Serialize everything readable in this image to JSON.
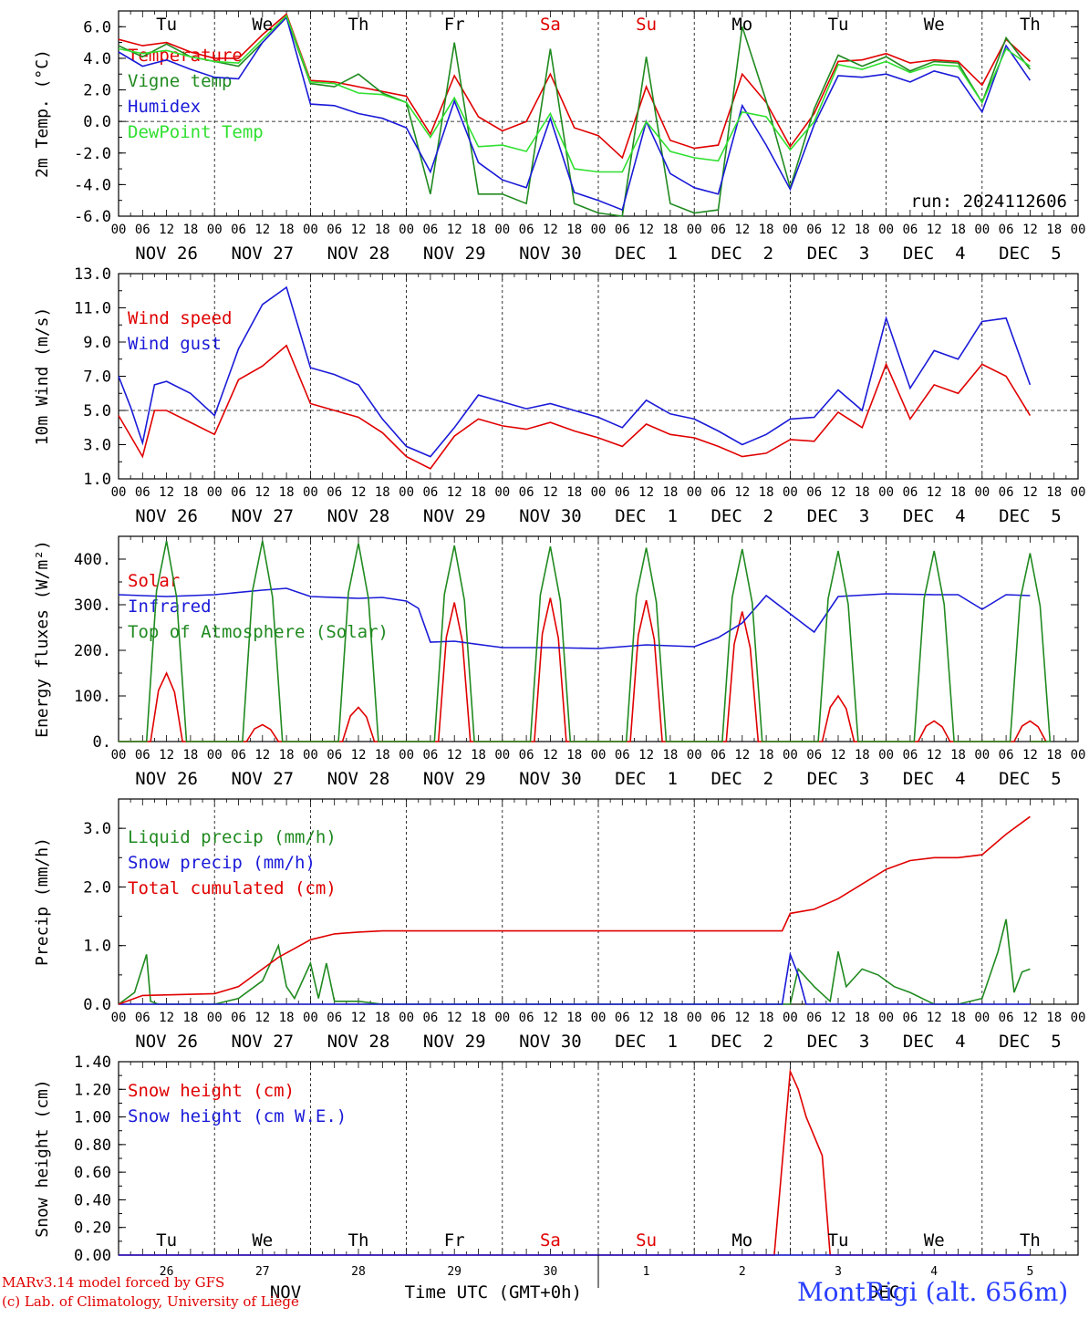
{
  "colors": {
    "red": "#e00000",
    "green": "#208a20",
    "blue": "#1a1ad8",
    "lightgreen": "#30e030",
    "axis": "#000000"
  },
  "day_labels": [
    "Tu",
    "We",
    "Th",
    "Fr",
    "Sa",
    "Su",
    "Mo",
    "Tu",
    "We",
    "Th"
  ],
  "weekend_days": [
    "Sa",
    "Su"
  ],
  "date_labels": [
    "NOV 26",
    "NOV 27",
    "NOV 28",
    "NOV 29",
    "NOV 30",
    "DEC  1",
    "DEC  2",
    "DEC  3",
    "DEC  4",
    "DEC  5"
  ],
  "hour_ticks": [
    "00",
    "06",
    "12",
    "18"
  ],
  "bottom_axis": {
    "day_numbers": [
      "26",
      "27",
      "28",
      "29",
      "30",
      "1",
      "2",
      "3",
      "4",
      "5"
    ],
    "month_nov": "NOV",
    "month_dec": "DEC",
    "title": "Time UTC (GMT+0h)"
  },
  "footer": {
    "model": "MARv3.14 model forced by GFS",
    "lab": "(c) Lab. of Climatology, University of Liège",
    "station": "MontRigi (alt. 656m)"
  },
  "chart_data": [
    {
      "id": "temp",
      "type": "line",
      "ylabel": "2m Temp. (°C)",
      "ylim": [
        -6,
        7
      ],
      "yticks": [
        "6.0",
        "4.0",
        "2.0",
        "0.0",
        "-2.0",
        "-4.0",
        "-6.0"
      ],
      "ytick_values": [
        6,
        4,
        2,
        0,
        -2,
        -4,
        -6
      ],
      "ref_line": 0,
      "annotation": "run: 2024112606",
      "x_unit": "hours since NOV 26 00 UTC",
      "series": [
        {
          "name": "Temperature",
          "color": "red",
          "x": [
            0,
            6,
            12,
            18,
            24,
            30,
            36,
            42,
            48,
            54,
            60,
            66,
            72,
            78,
            84,
            90,
            96,
            102,
            108,
            114,
            120,
            126,
            132,
            138,
            144,
            150,
            156,
            162,
            168,
            174,
            180,
            186,
            192,
            198,
            204,
            210,
            216,
            222,
            228
          ],
          "y": [
            5.2,
            4.8,
            5.0,
            4.4,
            4.0,
            4.0,
            5.5,
            6.8,
            2.6,
            2.5,
            2.2,
            1.9,
            1.6,
            -0.8,
            2.9,
            0.3,
            -0.6,
            0.0,
            3.0,
            -0.4,
            -0.9,
            -2.3,
            2.2,
            -1.2,
            -1.7,
            -1.5,
            3.0,
            1.2,
            -1.6,
            0.5,
            3.8,
            3.9,
            4.3,
            3.7,
            3.9,
            3.8,
            2.3,
            5.2,
            3.8
          ]
        },
        {
          "name": "Vigne temp",
          "color": "green",
          "x": [
            0,
            6,
            12,
            18,
            24,
            30,
            36,
            42,
            48,
            54,
            60,
            66,
            72,
            78,
            84,
            90,
            96,
            102,
            108,
            114,
            120,
            126,
            132,
            138,
            144,
            150,
            156,
            162,
            168,
            174,
            180,
            186,
            192,
            198,
            204,
            210,
            216,
            222,
            228
          ],
          "y": [
            4.8,
            4.1,
            4.9,
            4.1,
            3.8,
            3.5,
            5.0,
            6.6,
            2.4,
            2.2,
            3.0,
            1.8,
            1.2,
            -4.6,
            5.0,
            -4.6,
            -4.6,
            -5.2,
            4.6,
            -5.2,
            -5.8,
            -6.0,
            4.1,
            -5.2,
            -5.8,
            -5.6,
            6.0,
            1.3,
            -4.2,
            0.8,
            4.2,
            3.5,
            4.1,
            3.2,
            3.8,
            3.7,
            1.2,
            5.3,
            3.3
          ]
        },
        {
          "name": "Humidex",
          "color": "blue",
          "x": [
            0,
            6,
            12,
            18,
            24,
            30,
            36,
            42,
            48,
            54,
            60,
            66,
            72,
            78,
            84,
            90,
            96,
            102,
            108,
            114,
            120,
            126,
            132,
            138,
            144,
            150,
            156,
            162,
            168,
            174,
            180,
            186,
            192,
            198,
            204,
            210,
            216,
            222,
            228
          ],
          "y": [
            4.4,
            3.5,
            3.9,
            3.3,
            2.8,
            2.7,
            5.0,
            6.6,
            1.1,
            1.0,
            0.5,
            0.2,
            -0.4,
            -3.2,
            1.3,
            -2.6,
            -3.7,
            -4.2,
            0.2,
            -4.5,
            -5.0,
            -5.6,
            0.0,
            -3.3,
            -4.2,
            -4.6,
            1.0,
            -1.5,
            -4.3,
            -0.2,
            2.9,
            2.8,
            3.0,
            2.5,
            3.2,
            2.8,
            0.6,
            4.8,
            2.6
          ]
        },
        {
          "name": "DewPoint Temp",
          "color": "lightgreen",
          "x": [
            0,
            6,
            12,
            18,
            24,
            30,
            36,
            42,
            48,
            54,
            60,
            66,
            72,
            78,
            84,
            90,
            96,
            102,
            108,
            114,
            120,
            126,
            132,
            138,
            144,
            150,
            156,
            162,
            168,
            174,
            180,
            186,
            192,
            198,
            204,
            210,
            216,
            222,
            228
          ],
          "y": [
            4.6,
            4.3,
            4.5,
            4.1,
            3.8,
            3.7,
            5.2,
            6.7,
            2.5,
            2.4,
            1.8,
            1.7,
            1.2,
            -1.0,
            1.5,
            -1.6,
            -1.5,
            -1.9,
            0.5,
            -3.0,
            -3.2,
            -3.2,
            0.0,
            -1.9,
            -2.3,
            -2.5,
            0.6,
            0.3,
            -1.8,
            0.0,
            3.6,
            3.3,
            3.8,
            3.1,
            3.6,
            3.5,
            1.2,
            4.6,
            3.5
          ]
        }
      ]
    },
    {
      "id": "wind",
      "type": "line",
      "ylabel": "10m Wind (m/s)",
      "ylim": [
        1,
        13
      ],
      "yticks": [
        "13.0",
        "11.0",
        "9.0",
        "7.0",
        "5.0",
        "3.0",
        "1.0"
      ],
      "ytick_values": [
        13,
        11,
        9,
        7,
        5,
        3,
        1
      ],
      "ref_line": 5,
      "x_unit": "hours since NOV 26 00 UTC",
      "series": [
        {
          "name": "Wind speed",
          "color": "red",
          "x": [
            0,
            3,
            6,
            9,
            12,
            18,
            24,
            30,
            36,
            42,
            48,
            54,
            60,
            66,
            72,
            78,
            84,
            90,
            96,
            102,
            108,
            114,
            120,
            126,
            132,
            138,
            144,
            150,
            156,
            162,
            168,
            174,
            180,
            186,
            192,
            198,
            204,
            210,
            216,
            222,
            228
          ],
          "y": [
            4.7,
            3.5,
            2.3,
            5.0,
            5.0,
            4.3,
            3.6,
            6.8,
            7.6,
            8.8,
            5.4,
            5.0,
            4.6,
            3.7,
            2.3,
            1.6,
            3.5,
            4.5,
            4.1,
            3.9,
            4.3,
            3.8,
            3.4,
            2.9,
            4.2,
            3.6,
            3.4,
            2.9,
            2.3,
            2.5,
            3.3,
            3.2,
            4.9,
            4.0,
            7.7,
            4.5,
            6.5,
            6.0,
            7.7,
            7.0,
            4.7
          ]
        },
        {
          "name": "Wind gust",
          "color": "blue",
          "x": [
            0,
            3,
            6,
            9,
            12,
            18,
            24,
            30,
            36,
            42,
            48,
            54,
            60,
            66,
            72,
            78,
            84,
            90,
            96,
            102,
            108,
            114,
            120,
            126,
            132,
            138,
            144,
            150,
            156,
            162,
            168,
            174,
            180,
            186,
            192,
            198,
            204,
            210,
            216,
            222,
            228
          ],
          "y": [
            7.0,
            5.2,
            3.1,
            6.5,
            6.7,
            6.0,
            4.7,
            8.6,
            11.2,
            12.2,
            7.5,
            7.1,
            6.5,
            4.5,
            2.9,
            2.3,
            4.0,
            5.9,
            5.5,
            5.1,
            5.4,
            5.0,
            4.6,
            4.0,
            5.6,
            4.8,
            4.5,
            3.8,
            3.0,
            3.6,
            4.5,
            4.6,
            6.2,
            5.0,
            10.4,
            6.3,
            8.5,
            8.0,
            10.2,
            10.4,
            6.5
          ]
        }
      ]
    },
    {
      "id": "energy",
      "type": "line",
      "ylabel": "Energy fluxes (W/m²)",
      "ylim": [
        0,
        450
      ],
      "yticks": [
        "400.",
        "300.",
        "200.",
        "100.",
        "0."
      ],
      "ytick_values": [
        400,
        300,
        200,
        100,
        0
      ],
      "x_unit": "hours since NOV 26 00 UTC",
      "series": [
        {
          "name": "Solar",
          "color": "red",
          "peaks": [
            150,
            37,
            75,
            305,
            315,
            310,
            285,
            100,
            45,
            45
          ]
        },
        {
          "name": "Infrared",
          "color": "blue",
          "x": [
            0,
            12,
            24,
            36,
            42,
            48,
            60,
            66,
            72,
            75,
            78,
            84,
            96,
            108,
            120,
            132,
            144,
            150,
            156,
            162,
            168,
            174,
            180,
            192,
            204,
            210,
            216,
            222,
            228
          ],
          "y": [
            322,
            318,
            322,
            332,
            336,
            318,
            314,
            316,
            308,
            292,
            218,
            220,
            206,
            206,
            204,
            212,
            208,
            228,
            260,
            320,
            280,
            240,
            318,
            324,
            322,
            322,
            290,
            322,
            320
          ]
        },
        {
          "name": "Top of Atmosphere (Solar)",
          "color": "green",
          "peaks": [
            440,
            440,
            435,
            430,
            428,
            425,
            422,
            418,
            418,
            413
          ]
        }
      ]
    },
    {
      "id": "precip",
      "type": "line",
      "ylabel": "Precip (mm/h)",
      "ylim": [
        0,
        3.5
      ],
      "yticks": [
        "3.0",
        "2.0",
        "1.0",
        "0.0"
      ],
      "ytick_values": [
        3,
        2,
        1,
        0
      ],
      "x_unit": "hours since NOV 26 00 UTC",
      "series": [
        {
          "name": "Liquid precip (mm/h)",
          "color": "green",
          "x": [
            0,
            4,
            7,
            8,
            10,
            12,
            24,
            30,
            36,
            40,
            42,
            44,
            48,
            50,
            52,
            54,
            60,
            66,
            72,
            168,
            170,
            174,
            178,
            180,
            182,
            186,
            190,
            194,
            198,
            204,
            210,
            216,
            220,
            222,
            224,
            226,
            228
          ],
          "y": [
            0,
            0.2,
            0.85,
            0.05,
            0,
            0,
            0,
            0.1,
            0.4,
            1.0,
            0.3,
            0.1,
            0.7,
            0.1,
            0.7,
            0.05,
            0.05,
            0,
            0,
            0,
            0.6,
            0.3,
            0.05,
            0.9,
            0.3,
            0.6,
            0.5,
            0.3,
            0.2,
            0,
            0,
            0.1,
            0.9,
            1.45,
            0.2,
            0.55,
            0.6
          ]
        },
        {
          "name": "Snow precip (mm/h)",
          "color": "blue",
          "x": [
            0,
            166,
            168,
            170,
            172,
            174,
            228
          ],
          "y": [
            0,
            0,
            0.85,
            0.5,
            0,
            0,
            0
          ]
        },
        {
          "name": "Total cumulated (cm)",
          "color": "red",
          "x": [
            0,
            6,
            24,
            30,
            36,
            40,
            44,
            48,
            54,
            60,
            66,
            72,
            84,
            96,
            108,
            120,
            132,
            144,
            156,
            162,
            166,
            168,
            174,
            180,
            186,
            192,
            198,
            204,
            210,
            216,
            222,
            228
          ],
          "y": [
            0,
            0.15,
            0.18,
            0.3,
            0.6,
            0.8,
            0.95,
            1.1,
            1.2,
            1.23,
            1.25,
            1.25,
            1.25,
            1.25,
            1.25,
            1.25,
            1.25,
            1.25,
            1.25,
            1.25,
            1.25,
            1.55,
            1.62,
            1.8,
            2.05,
            2.3,
            2.45,
            2.5,
            2.5,
            2.55,
            2.9,
            3.2
          ]
        }
      ]
    },
    {
      "id": "snow",
      "type": "line",
      "ylabel": "Snow height (cm)",
      "ylim": [
        0,
        1.4
      ],
      "yticks": [
        "1.40",
        "1.20",
        "1.00",
        "0.80",
        "0.60",
        "0.40",
        "0.20",
        "0.00"
      ],
      "ytick_values": [
        1.4,
        1.2,
        1.0,
        0.8,
        0.6,
        0.4,
        0.2,
        0
      ],
      "x_unit": "hours since NOV 26 00 UTC",
      "series": [
        {
          "name": "Snow height (cm)",
          "color": "red",
          "x": [
            0,
            164,
            168,
            170,
            172,
            176,
            178,
            228
          ],
          "y": [
            0,
            0,
            1.33,
            1.2,
            1.0,
            0.72,
            0,
            0
          ]
        },
        {
          "name": "Snow height (cm W.E.)",
          "color": "blue",
          "x": [
            0,
            228
          ],
          "y": [
            0,
            0
          ]
        }
      ]
    }
  ]
}
